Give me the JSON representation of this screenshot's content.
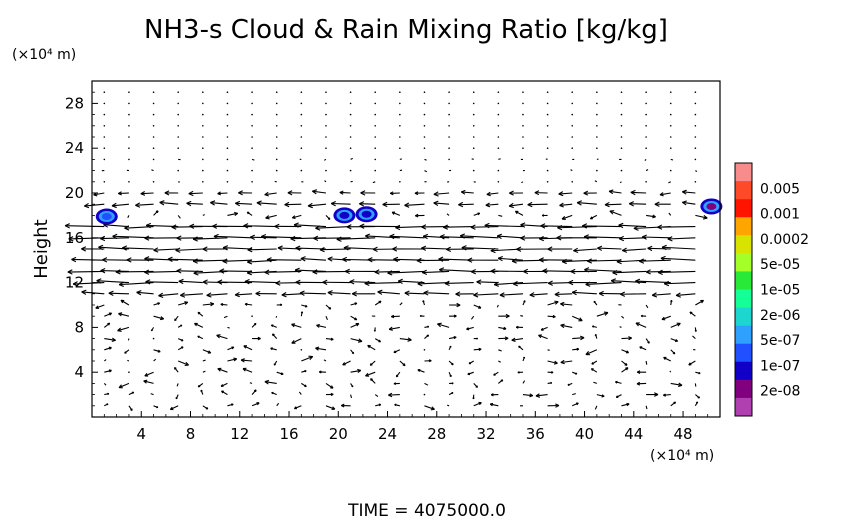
{
  "chart_data": {
    "type": "vector-contour",
    "title": "NH3-s Cloud & Rain Mixing Ratio [kg/kg]",
    "ylabel": "Height",
    "x_unit_label": "(×10⁴ m)",
    "y_unit_label": "(×10⁴ m)",
    "xlim": [
      0,
      51
    ],
    "ylim": [
      0,
      30
    ],
    "x_ticks": [
      "4",
      "8",
      "12",
      "16",
      "20",
      "24",
      "28",
      "32",
      "36",
      "40",
      "44",
      "48"
    ],
    "y_ticks": [
      "4",
      "8",
      "12",
      "16",
      "20",
      "24",
      "28"
    ],
    "legend": {
      "placement": "right",
      "levels": [
        "0.005",
        "0.001",
        "0.0002",
        "5e-05",
        "1e-05",
        "2e-06",
        "5e-07",
        "1e-07",
        "2e-08"
      ],
      "colors": [
        "#f88c8c",
        "#ff4a2a",
        "#ff1400",
        "#ffa500",
        "#d8e400",
        "#a4ff28",
        "#28e838",
        "#14ff96",
        "#1cd6d0",
        "#30a0ff",
        "#2050ff",
        "#1000c8",
        "#800080",
        "#b040b0"
      ]
    },
    "cloud_patches": [
      {
        "x": 1.2,
        "y": 17.9,
        "level": "5e-07"
      },
      {
        "x": 20.5,
        "y": 18.0,
        "level": "1e-07"
      },
      {
        "x": 22.3,
        "y": 18.1,
        "level": "1e-07"
      },
      {
        "x": 50.3,
        "y": 18.8,
        "level": "2e-08"
      }
    ],
    "wind_bands": [
      {
        "y": 20,
        "speed": -0.35
      },
      {
        "y": 19,
        "speed": -0.45
      },
      {
        "y": 17,
        "speed": -0.9
      },
      {
        "y": 16,
        "speed": -0.95
      },
      {
        "y": 15,
        "speed": -0.85
      },
      {
        "y": 14,
        "speed": -0.8
      },
      {
        "y": 13,
        "speed": -0.85
      },
      {
        "y": 12,
        "speed": -0.8
      },
      {
        "y": 11,
        "speed": -0.6
      }
    ],
    "time_label": "TIME  =  4075000.0"
  }
}
